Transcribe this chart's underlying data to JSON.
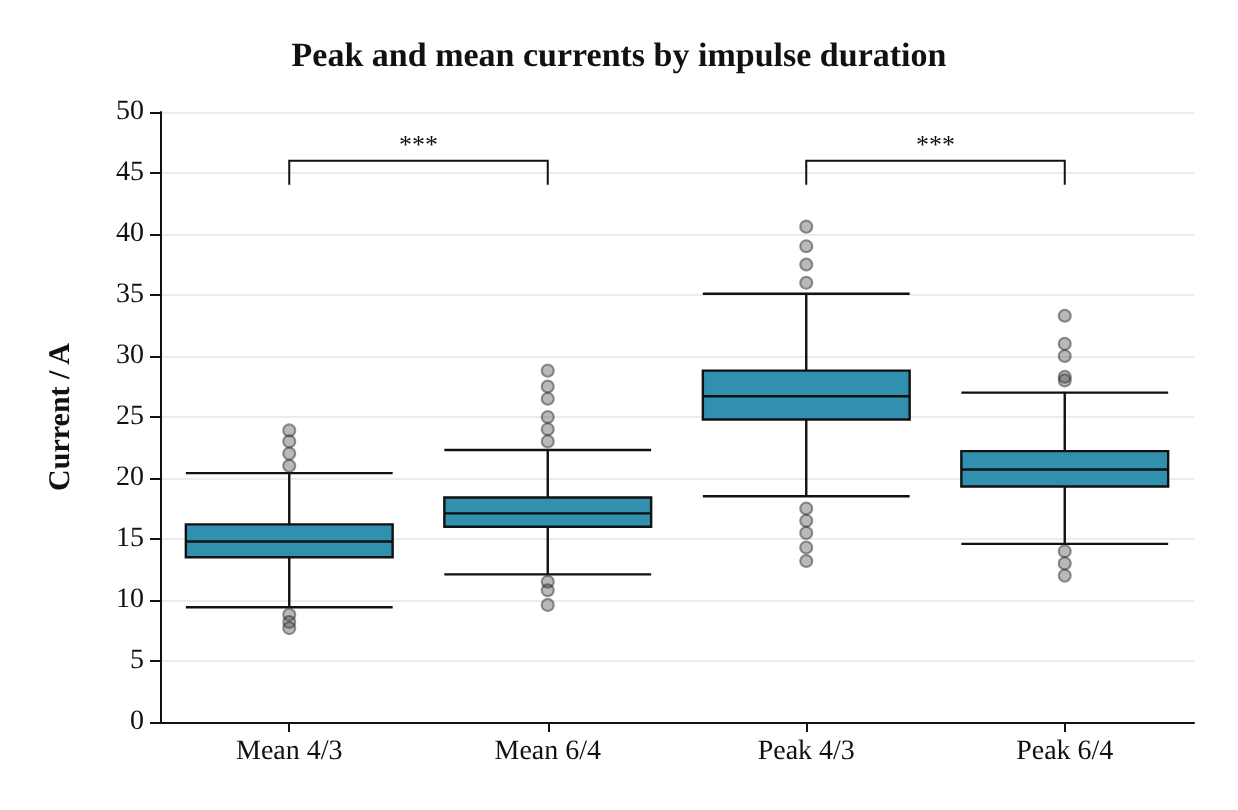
{
  "chart_data": {
    "type": "box",
    "title": "Peak and mean currents by impulse duration",
    "ylabel": "Current / A",
    "categories": [
      "Mean 4/3",
      "Mean 6/4",
      "Peak 4/3",
      "Peak 6/4"
    ],
    "color": "#3190ad",
    "boxes": [
      {
        "low": 9.4,
        "q1": 13.5,
        "median": 14.8,
        "q3": 16.2,
        "high": 20.4,
        "outliers": [
          23.9,
          23,
          22,
          21,
          8.8,
          8.2,
          7.7
        ]
      },
      {
        "low": 12.1,
        "q1": 16,
        "median": 17.1,
        "q3": 18.4,
        "high": 22.3,
        "outliers": [
          28.8,
          27.5,
          26.5,
          25,
          24,
          23,
          11.5,
          10.8,
          9.6
        ]
      },
      {
        "low": 18.5,
        "q1": 24.8,
        "median": 26.7,
        "q3": 28.8,
        "high": 35.1,
        "outliers": [
          40.6,
          39,
          37.5,
          36,
          17.5,
          16.5,
          15.5,
          14.3,
          13.2
        ]
      },
      {
        "low": 14.6,
        "q1": 19.3,
        "median": 20.7,
        "q3": 22.2,
        "high": 27,
        "outliers": [
          33.3,
          31,
          30,
          28.3,
          28,
          14,
          13,
          12
        ]
      }
    ],
    "ylim": [
      0,
      50
    ],
    "yticks": [
      0,
      5,
      10,
      15,
      20,
      25,
      30,
      35,
      40,
      45,
      50
    ],
    "grid": "y",
    "annotations": [
      "***",
      "***"
    ]
  }
}
